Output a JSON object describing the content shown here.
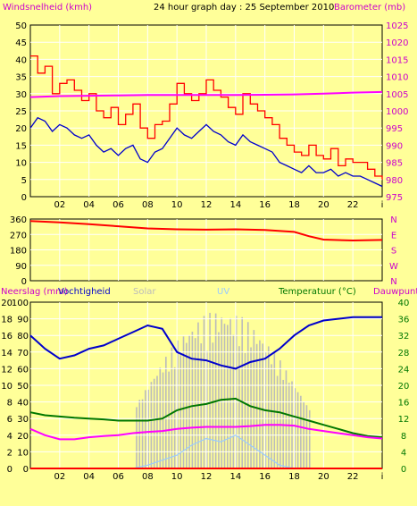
{
  "colors": {
    "background": "#ffff99",
    "plot_bg": "#ffff99",
    "grid": "#ffffff",
    "gust": "#ff0000",
    "wind": "#0000cc",
    "barometer": "#ff00ff",
    "direction": "#ff0000",
    "humidity": "#0000cc",
    "solar": "#bbbbbb",
    "uv": "#99ccff",
    "temperature": "#007700",
    "dewpoint": "#ff00ff",
    "rain": "#ff0000",
    "left_axis_text": "#000000",
    "right_axis_text_top": "#cc00cc",
    "right_axis_text_bottom": "#007700",
    "title_text": "#000000"
  },
  "header": {
    "left_label": "Windsnelheid (kmh)",
    "title": "24 hour graph day : 25 September 2010",
    "right_label": "Barometer (mb)"
  },
  "bottom_header": {
    "label_rain": "Neerslag (mm)",
    "label_humidity": "Vochtigheid",
    "label_solar": "Solar",
    "label_uv": "UV",
    "label_temp": "Temperatuur (°C)",
    "label_dew": "Dauwpunt"
  },
  "chart_data": [
    {
      "type": "line",
      "title": "24 hour graph day : 25 September 2010",
      "x_ticks": [
        "02",
        "04",
        "06",
        "08",
        "10",
        "12",
        "14",
        "16",
        "18",
        "20",
        "22",
        "i"
      ],
      "xlim_hours": [
        0,
        24
      ],
      "left_axis": {
        "label": "Windsnelheid (kmh)",
        "ticks": [
          0,
          5,
          10,
          15,
          20,
          25,
          30,
          35,
          40,
          45,
          50
        ],
        "ylim": [
          0,
          50
        ]
      },
      "right_axis": {
        "label": "Barometer (mb)",
        "ticks": [
          975,
          980,
          985,
          990,
          995,
          1000,
          1005,
          1010,
          1015,
          1020,
          1025
        ],
        "ylim": [
          975,
          1025
        ]
      },
      "series": [
        {
          "name": "gust",
          "axis": "left",
          "x": [
            0,
            0.5,
            1,
            1.5,
            2,
            2.5,
            3,
            3.5,
            4,
            4.5,
            5,
            5.5,
            6,
            6.5,
            7,
            7.5,
            8,
            8.5,
            9,
            9.5,
            10,
            10.5,
            11,
            11.5,
            12,
            12.5,
            13,
            13.5,
            14,
            14.5,
            15,
            15.5,
            16,
            16.5,
            17,
            17.5,
            18,
            18.5,
            19,
            19.5,
            20,
            20.5,
            21,
            21.5,
            22,
            22.5,
            23,
            23.5,
            24
          ],
          "y": [
            41,
            36,
            38,
            30,
            33,
            34,
            31,
            28,
            30,
            25,
            23,
            26,
            21,
            24,
            27,
            20,
            17,
            21,
            22,
            27,
            33,
            30,
            28,
            30,
            34,
            31,
            29,
            26,
            24,
            30,
            27,
            25,
            23,
            21,
            17,
            15,
            13,
            12,
            15,
            12,
            11,
            14,
            9,
            11,
            10,
            10,
            8,
            6,
            5
          ]
        },
        {
          "name": "wind",
          "axis": "left",
          "x": [
            0,
            0.5,
            1,
            1.5,
            2,
            2.5,
            3,
            3.5,
            4,
            4.5,
            5,
            5.5,
            6,
            6.5,
            7,
            7.5,
            8,
            8.5,
            9,
            9.5,
            10,
            10.5,
            11,
            11.5,
            12,
            12.5,
            13,
            13.5,
            14,
            14.5,
            15,
            15.5,
            16,
            16.5,
            17,
            17.5,
            18,
            18.5,
            19,
            19.5,
            20,
            20.5,
            21,
            21.5,
            22,
            22.5,
            23,
            23.5,
            24
          ],
          "y": [
            20,
            23,
            22,
            19,
            21,
            20,
            18,
            17,
            18,
            15,
            13,
            14,
            12,
            14,
            15,
            11,
            10,
            13,
            14,
            17,
            20,
            18,
            17,
            19,
            21,
            19,
            18,
            16,
            15,
            18,
            16,
            15,
            14,
            13,
            10,
            9,
            8,
            7,
            9,
            7,
            7,
            8,
            6,
            7,
            6,
            6,
            5,
            4,
            3
          ]
        },
        {
          "name": "barometer",
          "axis": "right",
          "x": [
            0,
            2,
            4,
            6,
            8,
            10,
            12,
            14,
            16,
            18,
            20,
            22,
            24
          ],
          "y": [
            1004,
            1004.3,
            1004.4,
            1004.5,
            1004.6,
            1004.6,
            1004.6,
            1004.6,
            1004.7,
            1004.8,
            1005,
            1005.3,
            1005.5
          ]
        }
      ]
    },
    {
      "type": "line",
      "title": "",
      "x_ticks": [
        "02",
        "04",
        "06",
        "08",
        "10",
        "12",
        "14",
        "16",
        "18",
        "20",
        "22",
        "i"
      ],
      "xlim_hours": [
        0,
        24
      ],
      "left_axis": {
        "label": "",
        "ticks": [
          0,
          90,
          180,
          270,
          360
        ],
        "ylim": [
          0,
          360
        ]
      },
      "right_axis": {
        "label": "",
        "ticks": [
          "N",
          "W",
          "S",
          "E",
          "N"
        ]
      },
      "series": [
        {
          "name": "wind direction",
          "axis": "left",
          "x": [
            0,
            2,
            4,
            6,
            8,
            10,
            12,
            14,
            16,
            18,
            19,
            20,
            22,
            24
          ],
          "y": [
            348,
            340,
            330,
            318,
            305,
            300,
            298,
            300,
            296,
            285,
            260,
            240,
            235,
            238
          ]
        }
      ]
    },
    {
      "type": "line",
      "title": "",
      "x_ticks": [
        "02",
        "04",
        "06",
        "08",
        "10",
        "12",
        "14",
        "16",
        "18",
        "20",
        "22",
        "i"
      ],
      "xlim_hours": [
        0,
        24
      ],
      "left_axis": {
        "label": "Neerslag (mm)",
        "ticks": [
          0,
          2,
          4,
          6,
          8,
          10,
          12,
          14,
          16,
          18,
          20
        ]
      },
      "humidity_axis": {
        "label": "Vochtigheid",
        "ticks": [
          0,
          10,
          20,
          30,
          40,
          50,
          60,
          70,
          80,
          90,
          100
        ],
        "ylim": [
          0,
          100
        ]
      },
      "right_axis": {
        "label": "Temperatuur (°C)",
        "ticks": [
          0,
          4,
          8,
          12,
          16,
          20,
          24,
          28,
          32,
          36,
          40
        ],
        "ylim": [
          0,
          40
        ]
      },
      "series": [
        {
          "name": "humidity",
          "axis": "humidity",
          "x": [
            0,
            1,
            2,
            3,
            4,
            5,
            6,
            7,
            8,
            9,
            10,
            11,
            12,
            13,
            14,
            15,
            16,
            17,
            18,
            19,
            20,
            21,
            22,
            23,
            24
          ],
          "y": [
            80,
            72,
            66,
            68,
            72,
            74,
            78,
            82,
            86,
            84,
            70,
            66,
            65,
            62,
            60,
            64,
            66,
            72,
            80,
            86,
            89,
            90,
            91,
            91,
            91
          ]
        },
        {
          "name": "temperature",
          "axis": "right",
          "x": [
            0,
            1,
            2,
            3,
            4,
            5,
            6,
            7,
            8,
            9,
            10,
            11,
            12,
            13,
            14,
            15,
            16,
            17,
            18,
            19,
            20,
            21,
            22,
            23,
            24
          ],
          "y": [
            13.5,
            12.8,
            12.5,
            12.2,
            12,
            11.8,
            11.5,
            11.5,
            11.5,
            12,
            14,
            15,
            15.5,
            16.5,
            16.8,
            15,
            14,
            13.5,
            12.5,
            11.5,
            10.5,
            9.5,
            8.5,
            7.8,
            7.5
          ]
        },
        {
          "name": "dewpoint",
          "axis": "right",
          "x": [
            0,
            1,
            2,
            3,
            4,
            5,
            6,
            7,
            8,
            9,
            10,
            11,
            12,
            13,
            14,
            15,
            16,
            17,
            18,
            19,
            20,
            21,
            22,
            23,
            24
          ],
          "y": [
            9.5,
            8,
            7,
            7,
            7.5,
            7.8,
            8,
            8.5,
            8.8,
            9,
            9.5,
            9.8,
            10,
            10,
            10,
            10.2,
            10.5,
            10.5,
            10.3,
            9.5,
            9,
            8.5,
            8,
            7.5,
            7.2
          ]
        },
        {
          "name": "uv",
          "axis": "humidity",
          "x": [
            7,
            8,
            9,
            10,
            11,
            12,
            13,
            14,
            15,
            16,
            17,
            18
          ],
          "y": [
            0,
            2,
            5,
            8,
            14,
            18,
            16,
            20,
            14,
            8,
            2,
            0
          ]
        },
        {
          "name": "rain",
          "axis": "left",
          "x": [
            0,
            24
          ],
          "y": [
            0,
            0
          ]
        }
      ]
    }
  ]
}
